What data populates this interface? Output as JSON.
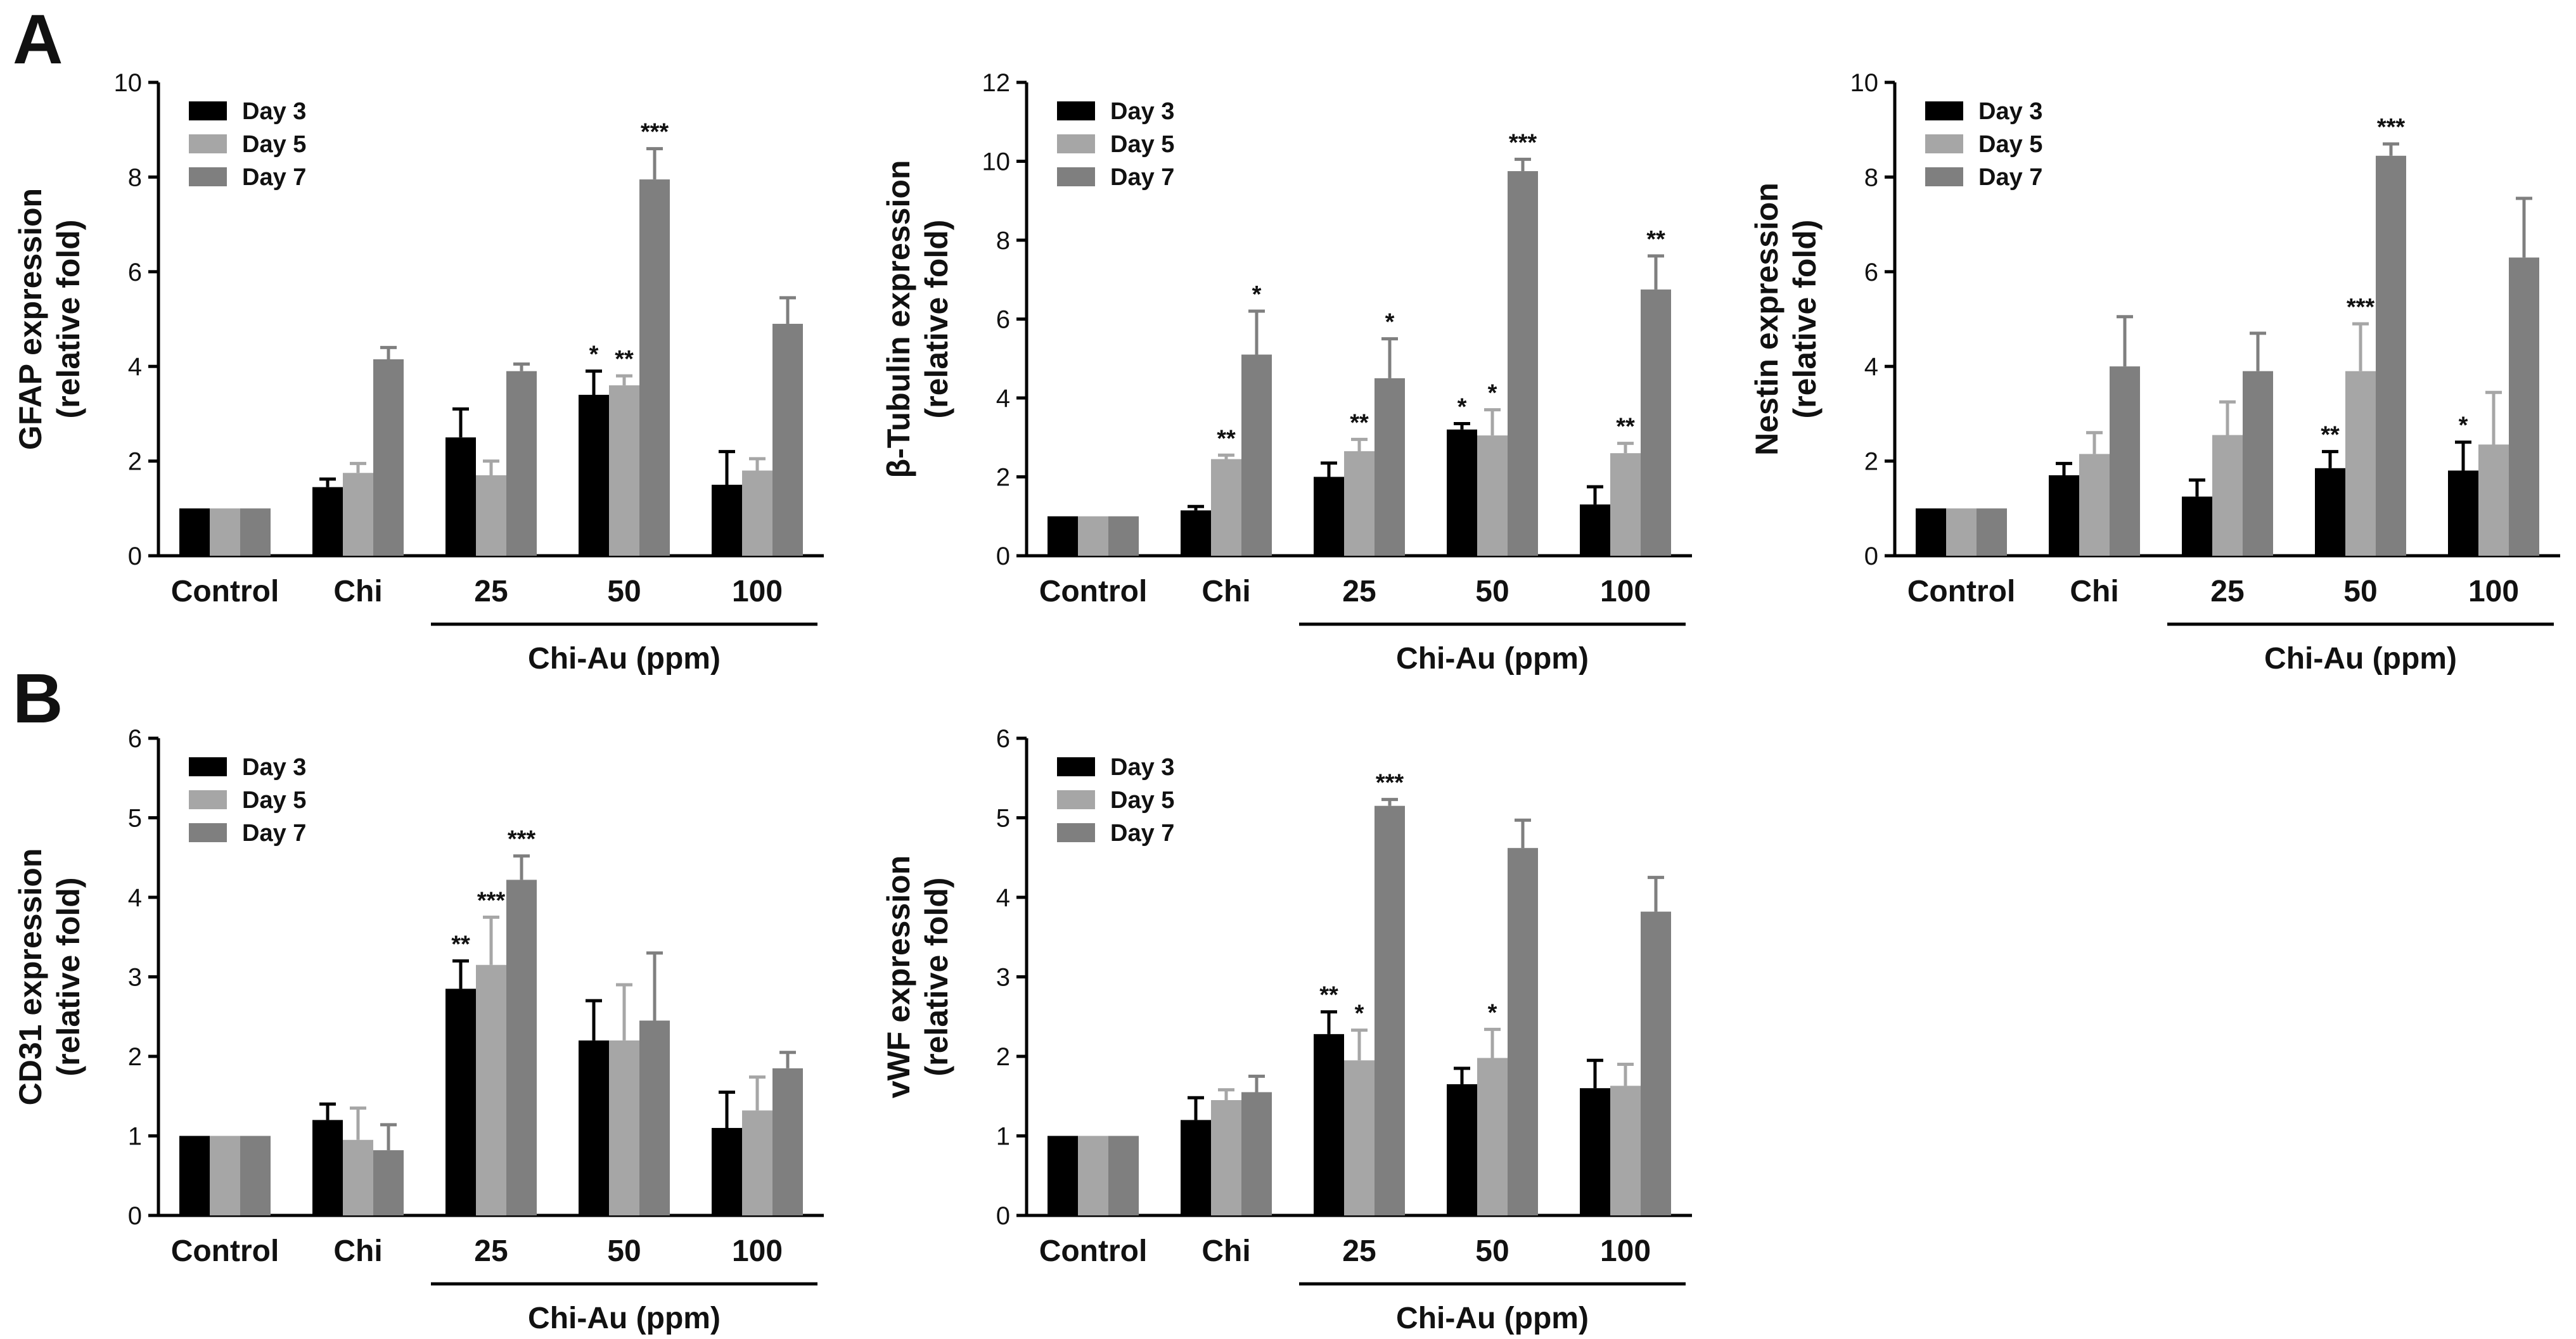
{
  "panel_labels": [
    "A",
    "B"
  ],
  "chart_data": [
    {
      "type": "bar",
      "ylabel": "GFAP expression",
      "ylabel2": "(relative fold)",
      "ylim": [
        0,
        10
      ],
      "yticks": [
        0,
        2,
        4,
        6,
        8,
        10
      ],
      "categories": [
        "Control",
        "Chi",
        "25",
        "50",
        "100"
      ],
      "group_label": "Chi-Au (ppm)",
      "series": [
        {
          "name": "Day 3",
          "color": "#000000",
          "values": [
            1.0,
            1.45,
            2.5,
            3.4,
            1.5
          ],
          "errors": [
            0,
            0.17,
            0.6,
            0.5,
            0.7
          ],
          "sig": [
            "",
            "",
            "",
            "*",
            ""
          ]
        },
        {
          "name": "Day 5",
          "color": "#a6a6a6",
          "values": [
            1.0,
            1.75,
            1.7,
            3.6,
            1.8
          ],
          "errors": [
            0,
            0.2,
            0.3,
            0.2,
            0.25
          ],
          "sig": [
            "",
            "",
            "",
            "**",
            ""
          ]
        },
        {
          "name": "Day 7",
          "color": "#7f7f7f",
          "values": [
            1.0,
            4.15,
            3.9,
            7.95,
            4.9
          ],
          "errors": [
            0,
            0.25,
            0.15,
            0.65,
            0.55
          ],
          "sig": [
            "",
            "",
            "",
            "***",
            ""
          ]
        }
      ]
    },
    {
      "type": "bar",
      "ylabel": "β-Tubulin expression",
      "ylabel2": "(relative fold)",
      "ylim": [
        0,
        12
      ],
      "yticks": [
        0,
        2,
        4,
        6,
        8,
        10,
        12
      ],
      "categories": [
        "Control",
        "Chi",
        "25",
        "50",
        "100"
      ],
      "group_label": "Chi-Au (ppm)",
      "series": [
        {
          "name": "Day 3",
          "color": "#000000",
          "values": [
            1.0,
            1.15,
            2.0,
            3.2,
            1.3
          ],
          "errors": [
            0,
            0.1,
            0.35,
            0.15,
            0.45
          ],
          "sig": [
            "",
            "",
            "",
            "*",
            ""
          ]
        },
        {
          "name": "Day 5",
          "color": "#a6a6a6",
          "values": [
            1.0,
            2.45,
            2.65,
            3.05,
            2.6
          ],
          "errors": [
            0,
            0.1,
            0.3,
            0.65,
            0.25
          ],
          "sig": [
            "",
            "**",
            "**",
            "*",
            "**"
          ]
        },
        {
          "name": "Day 7",
          "color": "#7f7f7f",
          "values": [
            1.0,
            5.1,
            4.5,
            9.75,
            6.75
          ],
          "errors": [
            0,
            1.1,
            1.0,
            0.3,
            0.85
          ],
          "sig": [
            "",
            "*",
            "*",
            "***",
            "**"
          ]
        }
      ]
    },
    {
      "type": "bar",
      "ylabel": "Nestin expression",
      "ylabel2": "(relative fold)",
      "ylim": [
        0,
        10
      ],
      "yticks": [
        0,
        2,
        4,
        6,
        8,
        10
      ],
      "categories": [
        "Control",
        "Chi",
        "25",
        "50",
        "100"
      ],
      "group_label": "Chi-Au (ppm)",
      "series": [
        {
          "name": "Day 3",
          "color": "#000000",
          "values": [
            1.0,
            1.7,
            1.25,
            1.85,
            1.8
          ],
          "errors": [
            0,
            0.25,
            0.35,
            0.35,
            0.6
          ],
          "sig": [
            "",
            "",
            "",
            "**",
            "*"
          ]
        },
        {
          "name": "Day 5",
          "color": "#a6a6a6",
          "values": [
            1.0,
            2.15,
            2.55,
            3.9,
            2.35
          ],
          "errors": [
            0,
            0.45,
            0.7,
            1.0,
            1.1
          ],
          "sig": [
            "",
            "",
            "",
            "***",
            ""
          ]
        },
        {
          "name": "Day 7",
          "color": "#7f7f7f",
          "values": [
            1.0,
            4.0,
            3.9,
            8.45,
            6.3
          ],
          "errors": [
            0,
            1.05,
            0.8,
            0.25,
            1.25
          ],
          "sig": [
            "",
            "",
            "",
            "***",
            ""
          ]
        }
      ]
    },
    {
      "type": "bar",
      "ylabel": "CD31 expression",
      "ylabel2": "(relative fold)",
      "ylim": [
        0,
        6
      ],
      "yticks": [
        0,
        1,
        2,
        3,
        4,
        5,
        6
      ],
      "categories": [
        "Control",
        "Chi",
        "25",
        "50",
        "100"
      ],
      "group_label": "Chi-Au (ppm)",
      "series": [
        {
          "name": "Day 3",
          "color": "#000000",
          "values": [
            1.0,
            1.2,
            2.85,
            2.2,
            1.1
          ],
          "errors": [
            0,
            0.2,
            0.35,
            0.5,
            0.45
          ],
          "sig": [
            "",
            "",
            "**",
            "",
            ""
          ]
        },
        {
          "name": "Day 5",
          "color": "#a6a6a6",
          "values": [
            1.0,
            0.95,
            3.15,
            2.2,
            1.32
          ],
          "errors": [
            0,
            0.4,
            0.6,
            0.7,
            0.42
          ],
          "sig": [
            "",
            "",
            "***",
            "",
            ""
          ]
        },
        {
          "name": "Day 7",
          "color": "#7f7f7f",
          "values": [
            1.0,
            0.82,
            4.22,
            2.45,
            1.85
          ],
          "errors": [
            0,
            0.32,
            0.3,
            0.85,
            0.2
          ],
          "sig": [
            "",
            "",
            "***",
            "",
            ""
          ]
        }
      ]
    },
    {
      "type": "bar",
      "ylabel": "vWF expression",
      "ylabel2": "(relative fold)",
      "ylim": [
        0,
        6
      ],
      "yticks": [
        0,
        1,
        2,
        3,
        4,
        5,
        6
      ],
      "categories": [
        "Control",
        "Chi",
        "25",
        "50",
        "100"
      ],
      "group_label": "Chi-Au (ppm)",
      "series": [
        {
          "name": "Day 3",
          "color": "#000000",
          "values": [
            1.0,
            1.2,
            2.28,
            1.65,
            1.6
          ],
          "errors": [
            0,
            0.28,
            0.28,
            0.2,
            0.35
          ],
          "sig": [
            "",
            "",
            "**",
            "",
            ""
          ]
        },
        {
          "name": "Day 5",
          "color": "#a6a6a6",
          "values": [
            1.0,
            1.45,
            1.95,
            1.98,
            1.63
          ],
          "errors": [
            0,
            0.13,
            0.38,
            0.36,
            0.27
          ],
          "sig": [
            "",
            "",
            "*",
            "*",
            ""
          ]
        },
        {
          "name": "Day 7",
          "color": "#7f7f7f",
          "values": [
            1.0,
            1.55,
            5.15,
            4.62,
            3.82
          ],
          "errors": [
            0,
            0.2,
            0.08,
            0.35,
            0.43
          ],
          "sig": [
            "",
            "",
            "***",
            "",
            ""
          ]
        }
      ]
    }
  ]
}
